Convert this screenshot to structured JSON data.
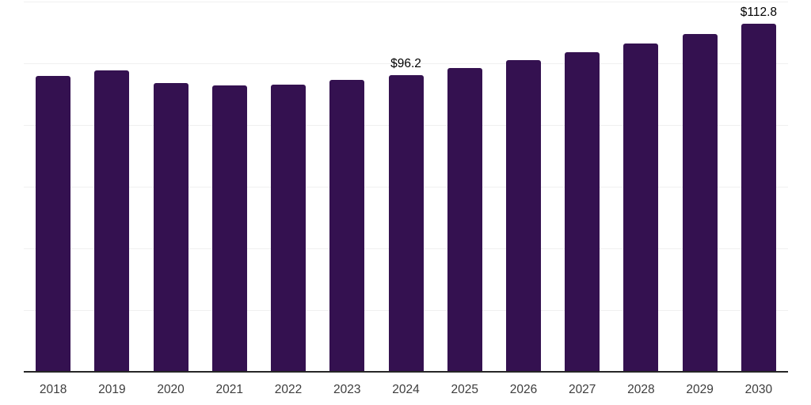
{
  "chart_data": {
    "type": "bar",
    "categories": [
      "2018",
      "2019",
      "2020",
      "2021",
      "2022",
      "2023",
      "2024",
      "2025",
      "2026",
      "2027",
      "2028",
      "2029",
      "2030"
    ],
    "values": [
      96.0,
      97.7,
      93.5,
      92.7,
      93.1,
      94.6,
      96.2,
      98.5,
      101.0,
      103.7,
      106.4,
      109.4,
      112.8
    ],
    "point_labels": [
      "",
      "",
      "",
      "",
      "",
      "",
      "$96.2",
      "",
      "",
      "",
      "",
      "",
      "$112.8"
    ],
    "xlabel": "",
    "ylabel": "",
    "ylim": [
      0,
      120
    ],
    "gridline_step": 20,
    "grid": "horizontal",
    "legend_position": "none",
    "colors": {
      "bar": "#341150",
      "gridline": "#f0f0f0",
      "axis": "#262626",
      "tick_label": "#3d3d3d",
      "value_label": "#000000",
      "background": "#ffffff"
    }
  }
}
